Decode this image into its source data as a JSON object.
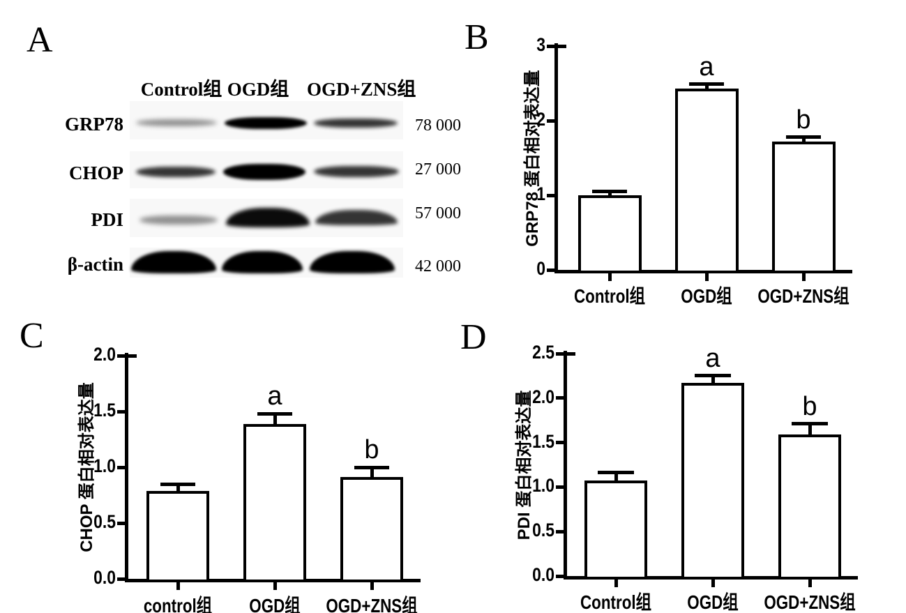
{
  "panel_a": {
    "label": "A",
    "lane_headers": [
      "Control组",
      "OGD组",
      "OGD+ZNS组"
    ],
    "blot_rows": [
      {
        "protein": "GRP78",
        "mw": "78 000",
        "band_intensities": [
          "light",
          "darkest",
          "medium"
        ]
      },
      {
        "protein": "CHOP",
        "mw": "27 000",
        "band_intensities": [
          "medium",
          "darkest",
          "medium"
        ]
      },
      {
        "protein": "PDI",
        "mw": "57 000",
        "band_intensities": [
          "light",
          "dark",
          "medium"
        ]
      },
      {
        "protein": "β-actin",
        "mw": "42 000",
        "band_intensities": [
          "darkest",
          "darkest",
          "darkest"
        ]
      }
    ]
  },
  "panel_b": {
    "label": "B"
  },
  "panel_c": {
    "label": "C"
  },
  "panel_d": {
    "label": "D"
  },
  "chart_data": [
    {
      "id": "B",
      "panel": "B",
      "type": "bar",
      "title": "",
      "xlabel": "",
      "ylabel": "GRP78 蛋白相对表达量",
      "categories": [
        "Control组",
        "OGD组",
        "OGD+ZNS组"
      ],
      "values": [
        1.0,
        2.43,
        1.72
      ],
      "errors": [
        0.05,
        0.06,
        0.06
      ],
      "annotations": [
        "",
        "a",
        "b"
      ],
      "ylim": [
        0,
        3
      ],
      "ytick_labels": [
        "0",
        "1",
        "2",
        "3"
      ],
      "grid": false,
      "legend": false,
      "bar_fill": "#ffffff",
      "bar_border": "#000000"
    },
    {
      "id": "C",
      "panel": "C",
      "type": "bar",
      "title": "",
      "xlabel": "",
      "ylabel": "CHOP 蛋白相对表达量",
      "categories": [
        "control组",
        "OGD组",
        "OGD+ZNS组"
      ],
      "values": [
        0.79,
        1.39,
        0.91
      ],
      "errors": [
        0.06,
        0.09,
        0.09
      ],
      "annotations": [
        "",
        "a",
        "b"
      ],
      "ylim": [
        0,
        2
      ],
      "ytick_labels": [
        "0.0",
        "0.5",
        "1.0",
        "1.5",
        "2.0"
      ],
      "grid": false,
      "legend": false,
      "bar_fill": "#ffffff",
      "bar_border": "#000000"
    },
    {
      "id": "D",
      "panel": "D",
      "type": "bar",
      "title": "",
      "xlabel": "",
      "ylabel": "PDI 蛋白相对表达量",
      "categories": [
        "Control组",
        "OGD组",
        "OGD+ZNS组"
      ],
      "values": [
        1.07,
        2.17,
        1.59
      ],
      "errors": [
        0.09,
        0.08,
        0.12
      ],
      "annotations": [
        "",
        "a",
        "b"
      ],
      "ylim": [
        0,
        2.5
      ],
      "ytick_labels": [
        "0.0",
        "0.5",
        "1.0",
        "1.5",
        "2.0",
        "2.5"
      ],
      "grid": false,
      "legend": false,
      "bar_fill": "#ffffff",
      "bar_border": "#000000"
    }
  ]
}
